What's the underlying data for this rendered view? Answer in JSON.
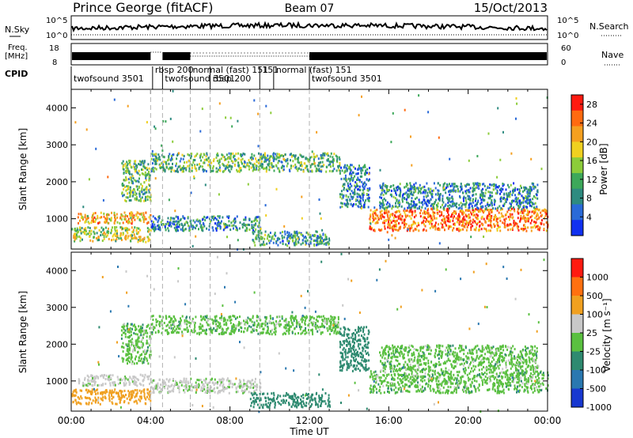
{
  "header": {
    "title": "Prince George (fitACF)",
    "beam": "Beam 07",
    "date": "15/Oct/2013"
  },
  "top_panels": {
    "nsky_label": "N.Sky",
    "nsearch_label": "N.Search",
    "nsky_ticks": [
      "10^5",
      "10^0"
    ],
    "nsearch_ticks": [
      "10^5",
      "10^0"
    ],
    "freq_label_1": "Freq.",
    "freq_label_2": "[MHz]",
    "freq_ticks": [
      "18",
      "8"
    ],
    "nave_label": "Nave",
    "nave_ticks": [
      "60",
      "0"
    ],
    "cpid_label": "CPID"
  },
  "cpid_segments": [
    {
      "start": 0.0,
      "end": 4.1,
      "label": "twofsound  3501",
      "row": 1
    },
    {
      "start": 4.1,
      "end": 4.6,
      "label": "rbsp 200",
      "row": 0
    },
    {
      "start": 4.6,
      "end": 6.0,
      "label": "twofsound 3501",
      "row": 1
    },
    {
      "start": 6.0,
      "end": 7.0,
      "label": "normal (fast) 151",
      "row": 0
    },
    {
      "start": 7.0,
      "end": 9.5,
      "label": "rbsp 200",
      "row": 1
    },
    {
      "start": 9.5,
      "end": 10.2,
      "label": "151",
      "row": 0
    },
    {
      "start": 10.2,
      "end": 12.0,
      "label": "normal (fast)  151",
      "row": 0
    },
    {
      "start": 12.0,
      "end": 24.0,
      "label": "twofsound  3501",
      "row": 1
    }
  ],
  "chart_data": [
    {
      "type": "heatmap",
      "title": "Power",
      "xlabel": "",
      "ylabel": "Slant Range [km]",
      "xlim": [
        0,
        24
      ],
      "ylim": [
        180,
        4500
      ],
      "x_ticks": [
        "00:00",
        "04:00",
        "08:00",
        "12:00",
        "16:00",
        "20:00",
        "00:00"
      ],
      "y_ticks": [
        1000,
        2000,
        3000,
        4000
      ],
      "colorbar": {
        "label": "Power [dB]",
        "ticks": [
          4,
          8,
          12,
          16,
          20,
          24,
          28
        ],
        "range": [
          0,
          30
        ],
        "colors": [
          "#1030f0",
          "#2a6ad8",
          "#2e8b80",
          "#3da85a",
          "#8ccc3a",
          "#f0d020",
          "#f5a020",
          "#ff6a10",
          "#ff1a10"
        ]
      },
      "echo_bands": [
        {
          "t_start": 0.0,
          "t_end": 4.0,
          "range_start": 400,
          "range_end": 800,
          "level": 16
        },
        {
          "t_start": 0.3,
          "t_end": 4.0,
          "range_start": 900,
          "range_end": 1200,
          "level": 20
        },
        {
          "t_start": 2.5,
          "t_end": 4.0,
          "range_start": 1500,
          "range_end": 2600,
          "level": 12
        },
        {
          "t_start": 4.0,
          "t_end": 13.5,
          "range_start": 2300,
          "range_end": 2800,
          "level": 12
        },
        {
          "t_start": 4.0,
          "t_end": 9.5,
          "range_start": 700,
          "range_end": 1100,
          "level": 8
        },
        {
          "t_start": 9.0,
          "t_end": 13.0,
          "range_start": 300,
          "range_end": 700,
          "level": 10
        },
        {
          "t_start": 13.5,
          "t_end": 15.0,
          "range_start": 1300,
          "range_end": 2500,
          "level": 8
        },
        {
          "t_start": 15.0,
          "t_end": 24.0,
          "range_start": 700,
          "range_end": 1300,
          "level": 24
        },
        {
          "t_start": 15.5,
          "t_end": 23.5,
          "range_start": 1300,
          "range_end": 2000,
          "level": 8
        }
      ]
    },
    {
      "type": "heatmap",
      "title": "Velocity",
      "xlabel": "Time UT",
      "ylabel": "Slant Range [km]",
      "xlim": [
        0,
        24
      ],
      "ylim": [
        180,
        4500
      ],
      "x_ticks": [
        "00:00",
        "04:00",
        "08:00",
        "12:00",
        "16:00",
        "20:00",
        "00:00"
      ],
      "y_ticks": [
        1000,
        2000,
        3000,
        4000
      ],
      "colorbar": {
        "label": "Velocity [m s⁻¹]",
        "ticks": [
          "1000",
          "500",
          "100",
          "25",
          "-25",
          "-100",
          "-500",
          "-1000"
        ],
        "colors": [
          "#1838d0",
          "#2a78b0",
          "#2e8a70",
          "#5ac040",
          "#c8c8c8",
          "#f0a020",
          "#ff7010",
          "#ff1a10"
        ]
      },
      "echo_bands": [
        {
          "t_start": 0.0,
          "t_end": 4.0,
          "range_start": 400,
          "range_end": 800,
          "velocity": -200
        },
        {
          "t_start": 0.3,
          "t_end": 4.0,
          "range_start": 900,
          "range_end": 1200,
          "velocity": -50
        },
        {
          "t_start": 2.5,
          "t_end": 4.0,
          "range_start": 1500,
          "range_end": 2600,
          "velocity": 0
        },
        {
          "t_start": 4.0,
          "t_end": 13.5,
          "range_start": 2300,
          "range_end": 2800,
          "velocity": 0
        },
        {
          "t_start": 4.0,
          "t_end": 9.5,
          "range_start": 700,
          "range_end": 1100,
          "velocity": -40
        },
        {
          "t_start": 9.0,
          "t_end": 13.0,
          "range_start": 300,
          "range_end": 700,
          "velocity": 60
        },
        {
          "t_start": 13.5,
          "t_end": 15.0,
          "range_start": 1300,
          "range_end": 2500,
          "velocity": 60
        },
        {
          "t_start": 15.0,
          "t_end": 24.0,
          "range_start": 700,
          "range_end": 1300,
          "velocity": 0
        },
        {
          "t_start": 15.5,
          "t_end": 23.5,
          "range_start": 1300,
          "range_end": 2000,
          "velocity": 0
        }
      ]
    }
  ]
}
